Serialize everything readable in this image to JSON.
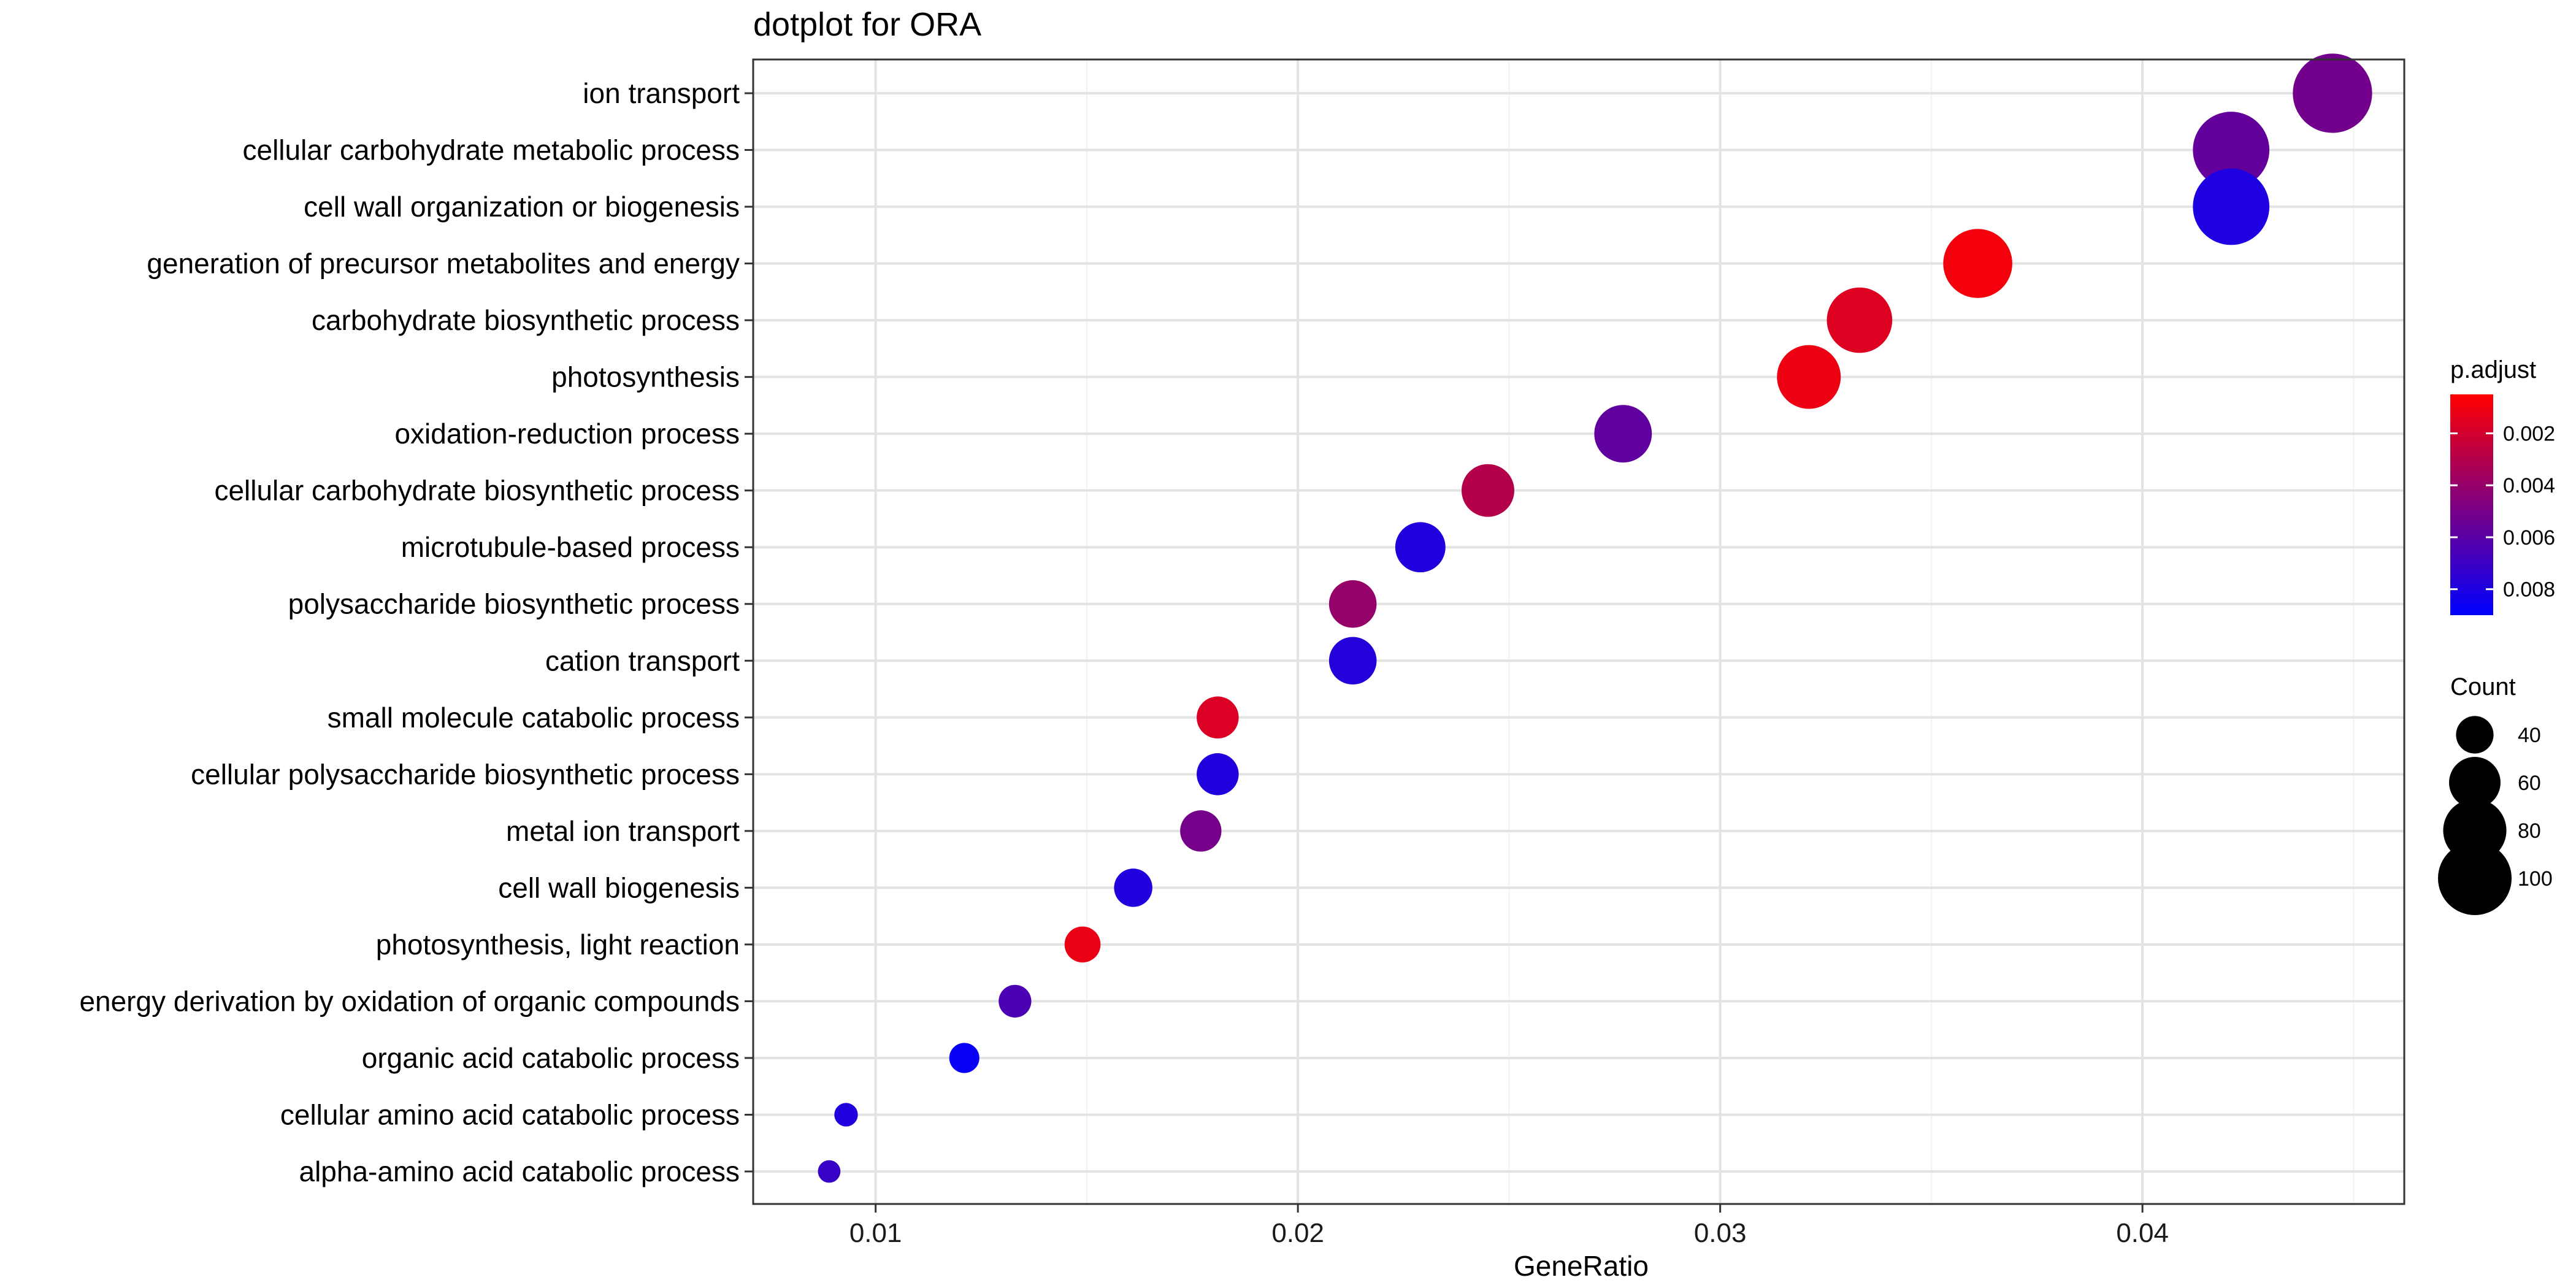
{
  "chart_data": {
    "type": "scatter",
    "title": "dotplot for ORA",
    "xlabel": "GeneRatio",
    "ylabel": "",
    "xlim": [
      0.0071,
      0.0462
    ],
    "xticks": [
      0.01,
      0.02,
      0.03,
      0.04
    ],
    "xtick_labels": [
      "0.01",
      "0.02",
      "0.03",
      "0.04"
    ],
    "grid": true,
    "legend_position": "right",
    "categories": [
      "ion transport",
      "cellular carbohydrate metabolic process",
      "cell wall organization or biogenesis",
      "generation of precursor metabolites and energy",
      "carbohydrate biosynthetic process",
      "photosynthesis",
      "oxidation-reduction process",
      "cellular carbohydrate biosynthetic process",
      "microtubule-based process",
      "polysaccharide biosynthetic process",
      "cation transport",
      "small molecule catabolic process",
      "cellular polysaccharide biosynthetic process",
      "metal ion transport",
      "cell wall biogenesis",
      "photosynthesis, light reaction",
      "energy derivation by oxidation of organic compounds",
      "organic acid catabolic process",
      "cellular amino acid catabolic process",
      "alpha-amino acid catabolic process"
    ],
    "points": [
      {
        "term": "ion transport",
        "gene_ratio": 0.0445,
        "count": 112,
        "p_adjust": 0.0052
      },
      {
        "term": "cellular carbohydrate metabolic process",
        "gene_ratio": 0.0421,
        "count": 106,
        "p_adjust": 0.0057
      },
      {
        "term": "cell wall organization or biogenesis",
        "gene_ratio": 0.0421,
        "count": 106,
        "p_adjust": 0.008
      },
      {
        "term": "generation of precursor metabolites and energy",
        "gene_ratio": 0.0361,
        "count": 91,
        "p_adjust": 0.0009
      },
      {
        "term": "carbohydrate biosynthetic process",
        "gene_ratio": 0.0333,
        "count": 84,
        "p_adjust": 0.0016
      },
      {
        "term": "photosynthesis",
        "gene_ratio": 0.0321,
        "count": 81,
        "p_adjust": 0.0011
      },
      {
        "term": "oxidation-reduction process",
        "gene_ratio": 0.0277,
        "count": 70,
        "p_adjust": 0.0058
      },
      {
        "term": "cellular carbohydrate biosynthetic process",
        "gene_ratio": 0.0245,
        "count": 62,
        "p_adjust": 0.003
      },
      {
        "term": "microtubule-based process",
        "gene_ratio": 0.0229,
        "count": 58,
        "p_adjust": 0.0079
      },
      {
        "term": "polysaccharide biosynthetic process",
        "gene_ratio": 0.0213,
        "count": 54,
        "p_adjust": 0.004
      },
      {
        "term": "cation transport",
        "gene_ratio": 0.0213,
        "count": 54,
        "p_adjust": 0.0078
      },
      {
        "term": "small molecule catabolic process",
        "gene_ratio": 0.0181,
        "count": 46,
        "p_adjust": 0.0017
      },
      {
        "term": "cellular polysaccharide biosynthetic process",
        "gene_ratio": 0.0181,
        "count": 46,
        "p_adjust": 0.0079
      },
      {
        "term": "metal ion transport",
        "gene_ratio": 0.0177,
        "count": 45,
        "p_adjust": 0.0051
      },
      {
        "term": "cell wall biogenesis",
        "gene_ratio": 0.0161,
        "count": 41,
        "p_adjust": 0.0079
      },
      {
        "term": "photosynthesis, light reaction",
        "gene_ratio": 0.0149,
        "count": 38,
        "p_adjust": 0.0012
      },
      {
        "term": "energy derivation by oxidation of organic compounds",
        "gene_ratio": 0.0133,
        "count": 34,
        "p_adjust": 0.0065
      },
      {
        "term": "organic acid catabolic process",
        "gene_ratio": 0.0121,
        "count": 31,
        "p_adjust": 0.0087
      },
      {
        "term": "cellular amino acid catabolic process",
        "gene_ratio": 0.0093,
        "count": 24,
        "p_adjust": 0.0079
      },
      {
        "term": "alpha-amino acid catabolic process",
        "gene_ratio": 0.0089,
        "count": 23,
        "p_adjust": 0.0071
      }
    ],
    "color_legend": {
      "title": "p.adjust",
      "ticks": [
        0.002,
        0.004,
        0.006,
        0.008
      ],
      "tick_labels": [
        "0.002",
        "0.004",
        "0.006",
        "0.008"
      ],
      "range": [
        0.0005,
        0.009
      ],
      "low_color": "#FF0000",
      "high_color": "#0000FF"
    },
    "size_legend": {
      "title": "Count",
      "values": [
        40,
        60,
        80,
        100
      ],
      "labels": [
        "40",
        "60",
        "80",
        "100"
      ]
    }
  }
}
